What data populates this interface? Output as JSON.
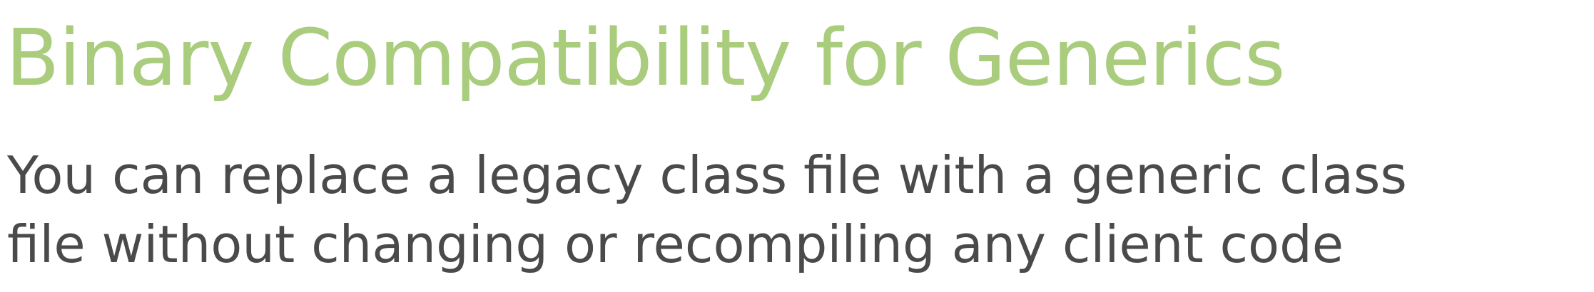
{
  "slide": {
    "title": "Binary Compatibility for Generics",
    "body_lines": [
      "You can replace a legacy class file with a generic class",
      "file without changing or recompiling any client code"
    ]
  },
  "colors": {
    "title": "#a9cc7d",
    "body": "#4a4a4a",
    "background": "#ffffff"
  }
}
